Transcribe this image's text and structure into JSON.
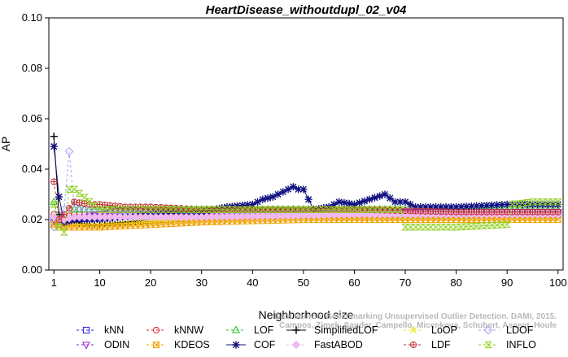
{
  "chart_data": {
    "type": "line",
    "title": "HeartDisease_withoutdupl_02_v04",
    "xlabel": "Neighborhood size",
    "ylabel": "AP",
    "xlim": [
      0,
      101
    ],
    "ylim": [
      0,
      0.1
    ],
    "x_ticks": [
      1,
      10,
      20,
      30,
      40,
      50,
      60,
      70,
      80,
      90,
      100
    ],
    "y_ticks": [
      0.0,
      0.02,
      0.04,
      0.06,
      0.08,
      0.1
    ],
    "y_tick_labels": [
      "0.00",
      "0.02",
      "0.04",
      "0.06",
      "0.08",
      "0.10"
    ],
    "grid": false,
    "legend_placement": "bottom",
    "watermark_line1": "Data source: Benchmarking Unsupervised Outlier Detection. DAMI, 2015.",
    "watermark_line2": "Campos, Zimek, Sander, Campello, Micenkova, Schubert, Assent, Houle",
    "series": [
      {
        "name": "kNN",
        "color": "#2020e0",
        "marker": "square",
        "dash": "3,3",
        "points": [
          [
            1,
            0.019
          ],
          [
            2,
            0.018
          ],
          [
            3,
            0.019
          ],
          [
            5,
            0.02
          ],
          [
            10,
            0.021
          ],
          [
            20,
            0.022
          ],
          [
            30,
            0.022
          ],
          [
            50,
            0.022
          ],
          [
            70,
            0.022
          ],
          [
            100,
            0.022
          ]
        ]
      },
      {
        "name": "kNNW",
        "color": "#e02020",
        "marker": "circle",
        "dash": "3,3",
        "points": [
          [
            1,
            0.022
          ],
          [
            2,
            0.021
          ],
          [
            3,
            0.021
          ],
          [
            5,
            0.022
          ],
          [
            10,
            0.022
          ],
          [
            20,
            0.022
          ],
          [
            40,
            0.022
          ],
          [
            70,
            0.022
          ],
          [
            100,
            0.022
          ]
        ]
      },
      {
        "name": "LOF",
        "color": "#20c020",
        "marker": "triangle",
        "dash": "3,3",
        "points": [
          [
            1,
            0.027
          ],
          [
            2,
            0.019
          ],
          [
            3,
            0.017
          ],
          [
            5,
            0.024
          ],
          [
            10,
            0.024
          ],
          [
            20,
            0.024
          ],
          [
            30,
            0.024
          ],
          [
            40,
            0.024
          ],
          [
            60,
            0.024
          ],
          [
            80,
            0.024
          ],
          [
            100,
            0.024
          ]
        ]
      },
      {
        "name": "SimplifiedLOF",
        "color": "#000000",
        "marker": "plus",
        "dash": "",
        "points": [
          [
            1,
            0.053
          ],
          [
            2,
            0.022
          ],
          [
            3,
            0.019
          ],
          [
            5,
            0.019
          ],
          [
            8,
            0.018
          ],
          [
            10,
            0.018
          ],
          [
            15,
            0.019
          ],
          [
            20,
            0.02
          ],
          [
            30,
            0.021
          ],
          [
            40,
            0.021
          ],
          [
            60,
            0.022
          ],
          [
            80,
            0.022
          ],
          [
            100,
            0.022
          ]
        ]
      },
      {
        "name": "LoOP",
        "color": "#e8e800",
        "marker": "x",
        "dash": "3,3",
        "points": [
          [
            1,
            0.018
          ],
          [
            3,
            0.018
          ],
          [
            5,
            0.018
          ],
          [
            10,
            0.018
          ],
          [
            20,
            0.019
          ],
          [
            30,
            0.02
          ],
          [
            50,
            0.021
          ],
          [
            70,
            0.021
          ],
          [
            100,
            0.021
          ]
        ]
      },
      {
        "name": "LDOF",
        "color": "#a0a0f0",
        "marker": "diamond",
        "dash": "3,3",
        "points": [
          [
            1,
            0.017
          ],
          [
            2,
            0.022
          ],
          [
            3,
            0.024
          ],
          [
            4,
            0.047
          ],
          [
            5,
            0.025
          ],
          [
            10,
            0.023
          ],
          [
            30,
            0.023
          ],
          [
            60,
            0.023
          ],
          [
            100,
            0.023
          ]
        ]
      },
      {
        "name": "ODIN",
        "color": "#9020d0",
        "marker": "triangle-down",
        "dash": "3,3",
        "points": [
          [
            1,
            0.02
          ],
          [
            3,
            0.019
          ],
          [
            5,
            0.02
          ],
          [
            10,
            0.022
          ],
          [
            15,
            0.024
          ],
          [
            20,
            0.023
          ],
          [
            30,
            0.023
          ],
          [
            50,
            0.023
          ],
          [
            70,
            0.023
          ],
          [
            100,
            0.023
          ]
        ]
      },
      {
        "name": "KDEOS",
        "color": "#f0a000",
        "marker": "square-x",
        "dash": "3,3",
        "points": [
          [
            1,
            0.018
          ],
          [
            2,
            0.017
          ],
          [
            3,
            0.017
          ],
          [
            5,
            0.017
          ],
          [
            10,
            0.017
          ],
          [
            20,
            0.018
          ],
          [
            30,
            0.019
          ],
          [
            50,
            0.02
          ],
          [
            70,
            0.02
          ],
          [
            100,
            0.02
          ]
        ]
      },
      {
        "name": "COF",
        "color": "#101080",
        "marker": "star",
        "dash": "",
        "points": [
          [
            1,
            0.049
          ],
          [
            2,
            0.029
          ],
          [
            3,
            0.019
          ],
          [
            5,
            0.02
          ],
          [
            10,
            0.02
          ],
          [
            20,
            0.022
          ],
          [
            30,
            0.023
          ],
          [
            35,
            0.025
          ],
          [
            40,
            0.026
          ],
          [
            42,
            0.028
          ],
          [
            44,
            0.029
          ],
          [
            46,
            0.031
          ],
          [
            48,
            0.033
          ],
          [
            49,
            0.032
          ],
          [
            50,
            0.032
          ],
          [
            51,
            0.028
          ],
          [
            52,
            0.024
          ],
          [
            55,
            0.025
          ],
          [
            57,
            0.027
          ],
          [
            60,
            0.026
          ],
          [
            63,
            0.028
          ],
          [
            66,
            0.03
          ],
          [
            68,
            0.027
          ],
          [
            70,
            0.027
          ],
          [
            72,
            0.025
          ],
          [
            80,
            0.025
          ],
          [
            90,
            0.026
          ],
          [
            100,
            0.026
          ]
        ]
      },
      {
        "name": "FastABOD",
        "color": "#f0b8f0",
        "marker": "diamond-filled",
        "dash": "3,3",
        "points": [
          [
            1,
            0.021
          ],
          [
            2,
            0.02
          ],
          [
            3,
            0.02
          ],
          [
            5,
            0.021
          ],
          [
            10,
            0.021
          ],
          [
            30,
            0.021
          ],
          [
            60,
            0.022
          ],
          [
            100,
            0.022
          ]
        ]
      },
      {
        "name": "LDF",
        "color": "#c03030",
        "marker": "circle-plus",
        "dash": "3,3",
        "points": [
          [
            1,
            0.035
          ],
          [
            2,
            0.02
          ],
          [
            3,
            0.022
          ],
          [
            5,
            0.027
          ],
          [
            8,
            0.026
          ],
          [
            10,
            0.026
          ],
          [
            15,
            0.025
          ],
          [
            20,
            0.025
          ],
          [
            30,
            0.024
          ],
          [
            40,
            0.024
          ],
          [
            60,
            0.024
          ],
          [
            80,
            0.023
          ],
          [
            100,
            0.023
          ]
        ]
      },
      {
        "name": "INFLO",
        "color": "#90d020",
        "marker": "hourglass",
        "dash": "3,3",
        "points": [
          [
            1,
            0.026
          ],
          [
            2,
            0.017
          ],
          [
            3,
            0.015
          ],
          [
            4,
            0.032
          ],
          [
            5,
            0.032
          ],
          [
            10,
            0.024
          ],
          [
            20,
            0.024
          ],
          [
            40,
            0.024
          ],
          [
            60,
            0.024
          ],
          [
            69,
            0.024
          ],
          [
            70,
            0.017
          ],
          [
            80,
            0.017
          ],
          [
            90,
            0.018
          ],
          [
            91,
            0.026
          ],
          [
            95,
            0.027
          ],
          [
            100,
            0.027
          ]
        ]
      }
    ]
  }
}
